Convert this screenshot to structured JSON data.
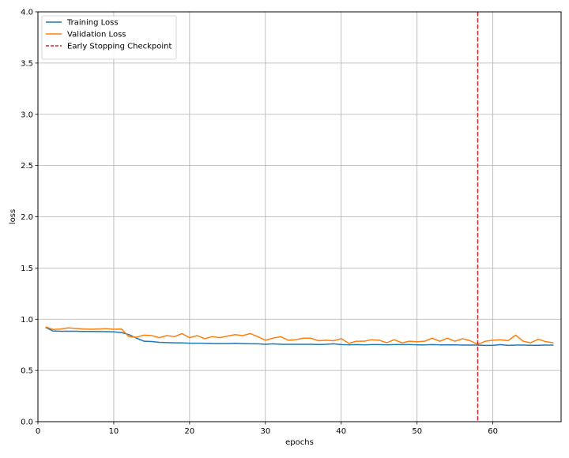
{
  "chart_data": {
    "type": "line",
    "title": "",
    "xlabel": "epochs",
    "ylabel": "loss",
    "xlim": [
      0,
      69
    ],
    "ylim": [
      0.0,
      4.0
    ],
    "xticks": [
      0,
      10,
      20,
      30,
      40,
      50,
      60
    ],
    "yticks": [
      0.0,
      0.5,
      1.0,
      1.5,
      2.0,
      2.5,
      3.0,
      3.5,
      4.0
    ],
    "grid": true,
    "legend_position": "top-left",
    "legend": [
      "Training Loss",
      "Validation Loss",
      "Early Stopping Checkpoint"
    ],
    "x": [
      1,
      2,
      3,
      4,
      5,
      6,
      7,
      8,
      9,
      10,
      11,
      12,
      13,
      14,
      15,
      16,
      17,
      18,
      19,
      20,
      21,
      22,
      23,
      24,
      25,
      26,
      27,
      28,
      29,
      30,
      31,
      32,
      33,
      34,
      35,
      36,
      37,
      38,
      39,
      40,
      41,
      42,
      43,
      44,
      45,
      46,
      47,
      48,
      49,
      50,
      51,
      52,
      53,
      54,
      55,
      56,
      57,
      58,
      59,
      60,
      61,
      62,
      63,
      64,
      65,
      66,
      67,
      68
    ],
    "series": [
      {
        "name": "Training Loss",
        "color": "#1f77b4",
        "values": [
          0.92,
          0.885,
          0.882,
          0.882,
          0.882,
          0.881,
          0.881,
          0.88,
          0.879,
          0.877,
          0.87,
          0.85,
          0.815,
          0.785,
          0.782,
          0.775,
          0.772,
          0.77,
          0.769,
          0.766,
          0.766,
          0.765,
          0.763,
          0.762,
          0.762,
          0.765,
          0.762,
          0.76,
          0.76,
          0.755,
          0.76,
          0.755,
          0.755,
          0.755,
          0.755,
          0.755,
          0.753,
          0.755,
          0.76,
          0.752,
          0.75,
          0.752,
          0.75,
          0.752,
          0.752,
          0.75,
          0.752,
          0.752,
          0.752,
          0.75,
          0.75,
          0.752,
          0.75,
          0.75,
          0.75,
          0.748,
          0.748,
          0.748,
          0.745,
          0.745,
          0.752,
          0.745,
          0.748,
          0.748,
          0.746,
          0.746,
          0.748,
          0.748
        ]
      },
      {
        "name": "Validation Loss",
        "color": "#ff7f0e",
        "values": [
          0.925,
          0.9,
          0.905,
          0.915,
          0.91,
          0.905,
          0.903,
          0.905,
          0.908,
          0.903,
          0.905,
          0.83,
          0.825,
          0.845,
          0.84,
          0.82,
          0.84,
          0.83,
          0.86,
          0.82,
          0.84,
          0.81,
          0.83,
          0.82,
          0.835,
          0.85,
          0.84,
          0.86,
          0.83,
          0.795,
          0.815,
          0.83,
          0.795,
          0.8,
          0.815,
          0.815,
          0.79,
          0.795,
          0.79,
          0.81,
          0.765,
          0.785,
          0.785,
          0.8,
          0.795,
          0.77,
          0.8,
          0.77,
          0.785,
          0.78,
          0.785,
          0.815,
          0.785,
          0.815,
          0.785,
          0.81,
          0.79,
          0.755,
          0.785,
          0.795,
          0.8,
          0.79,
          0.845,
          0.785,
          0.77,
          0.805,
          0.78,
          0.77
        ]
      }
    ],
    "vlines": [
      {
        "name": "Early Stopping Checkpoint",
        "x": 58,
        "color": "#d62728",
        "style": "dashed"
      }
    ]
  }
}
